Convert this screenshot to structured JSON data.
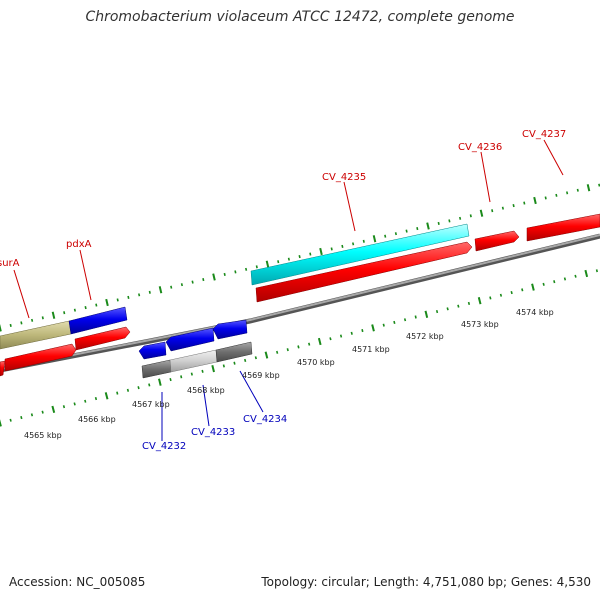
{
  "title": "Chromobacterium violaceum ATCC 12472, complete genome",
  "colors": {
    "background": "#ffffff",
    "forward_gene": "#ff0000",
    "forward_label": "#cc0000",
    "reverse_gene": "#0000ee",
    "reverse_label": "#0000bb",
    "highlight_gene": "#00ffff",
    "backbone": "#808080",
    "tick": "#1a8a1a",
    "olive_band": "#bdb77a",
    "gray_band": "#7a7a7a"
  },
  "footer": {
    "accession": "Accession: NC_005085",
    "summary": "Topology: circular; Length: 4,751,080 bp; Genes: 4,530"
  },
  "scale": {
    "unit": "kbp",
    "labels": [
      "4565 kbp",
      "4566 kbp",
      "4567 kbp",
      "4568 kbp",
      "4569 kbp",
      "4570 kbp",
      "4571 kbp",
      "4572 kbp",
      "4573 kbp",
      "4574 kbp"
    ]
  },
  "genes": {
    "forward_labels": [
      "surA",
      "pdxA",
      "CV_4235",
      "CV_4236",
      "CV_4237"
    ],
    "reverse_labels": [
      "CV_4232",
      "CV_4233",
      "CV_4234"
    ]
  }
}
